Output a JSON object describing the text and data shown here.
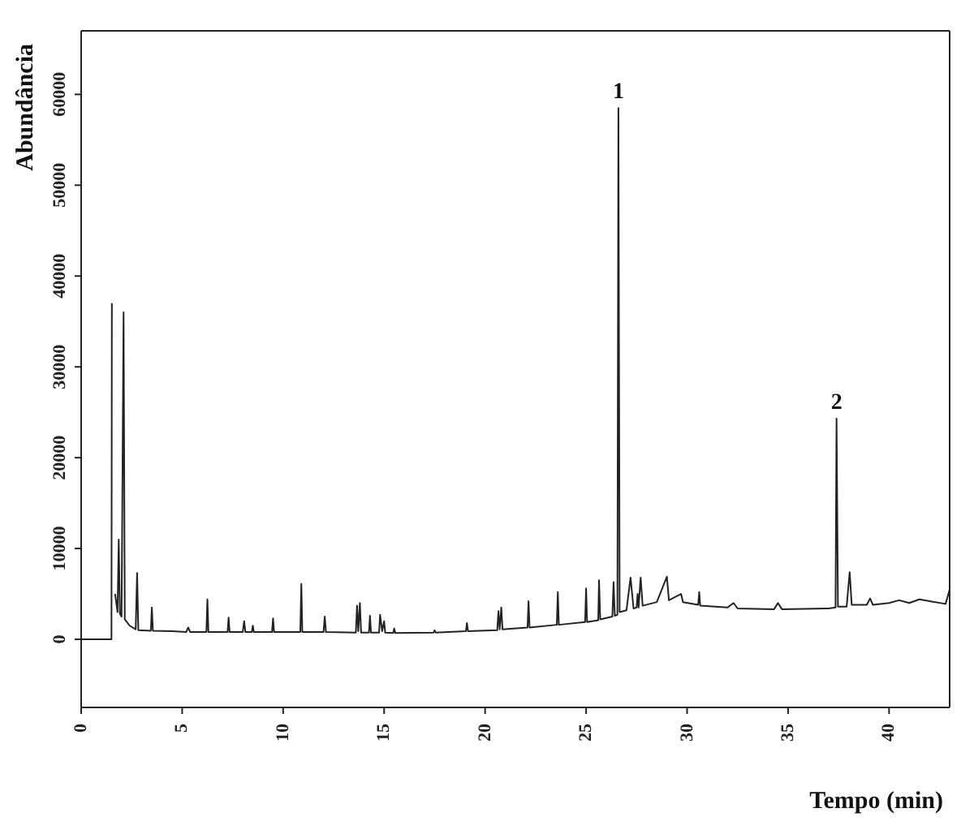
{
  "chart_data": {
    "type": "line",
    "xlabel": "Tempo (min)",
    "ylabel": "Abundância",
    "xlim": [
      0,
      43
    ],
    "xticks": [
      0,
      5,
      10,
      15,
      20,
      25,
      30,
      35,
      40
    ],
    "ylim": [
      -7500,
      67000
    ],
    "yticks": [
      0,
      10000,
      20000,
      30000,
      40000,
      50000,
      60000
    ],
    "marker": "none",
    "line_style": "solid",
    "annotations": [
      {
        "text": "1",
        "x": 26.6,
        "y": 58500
      },
      {
        "text": "2",
        "x": 37.4,
        "y": 24300
      }
    ],
    "series": [
      {
        "color": "#222222",
        "x": [
          0,
          1.5,
          1.52,
          1.55,
          1.62,
          1.68,
          1.8,
          1.86,
          1.92,
          2.0,
          2.1,
          2.16,
          2.4,
          2.7,
          2.77,
          2.83,
          3.45,
          3.5,
          3.55,
          4.5,
          5.2,
          5.3,
          5.4,
          6.2,
          6.25,
          6.3,
          7.25,
          7.3,
          7.35,
          8.0,
          8.07,
          8.13,
          8.45,
          8.5,
          8.55,
          9.45,
          9.5,
          9.55,
          10.85,
          10.9,
          10.95,
          12.0,
          12.06,
          12.12,
          13.6,
          13.66,
          13.72,
          13.8,
          13.86,
          14.25,
          14.3,
          14.35,
          14.75,
          14.8,
          14.9,
          15.0,
          15.05,
          15.45,
          15.5,
          15.55,
          17.45,
          17.5,
          17.55,
          19.05,
          19.1,
          19.15,
          20.6,
          20.66,
          20.72,
          20.8,
          20.86,
          22.1,
          22.15,
          22.2,
          23.55,
          23.6,
          23.65,
          24.95,
          25.0,
          25.05,
          25.6,
          25.64,
          25.7,
          26.3,
          26.36,
          26.42,
          26.55,
          26.6,
          26.66,
          27.0,
          27.2,
          27.35,
          27.5,
          27.55,
          27.6,
          27.7,
          27.8,
          28.5,
          29.0,
          29.1,
          29.7,
          29.8,
          30.55,
          30.6,
          30.65,
          32.0,
          32.3,
          32.5,
          34.3,
          34.5,
          34.7,
          37.0,
          37.35,
          37.4,
          37.47,
          37.9,
          38.05,
          38.15,
          38.9,
          39.06,
          39.2,
          40.0,
          40.5,
          41.0,
          41.5,
          42.0,
          42.8,
          43.0
        ],
        "values": [
          0,
          0,
          37000,
          null,
          null,
          5000,
          3000,
          11000,
          2800,
          2500,
          36000,
          2200,
          1500,
          1100,
          7300,
          1000,
          950,
          3500,
          950,
          900,
          800,
          1300,
          800,
          800,
          4400,
          800,
          800,
          2400,
          800,
          800,
          2000,
          800,
          800,
          1500,
          800,
          800,
          2300,
          800,
          800,
          6100,
          800,
          800,
          2500,
          800,
          750,
          3700,
          900,
          4000,
          750,
          750,
          2600,
          750,
          750,
          2700,
          900,
          2000,
          750,
          700,
          1200,
          700,
          750,
          1000,
          750,
          900,
          1800,
          900,
          1000,
          3100,
          1100,
          3500,
          1100,
          1300,
          4200,
          1300,
          1600,
          5200,
          1600,
          1900,
          5600,
          1900,
          2100,
          6500,
          2200,
          2500,
          6300,
          2600,
          2700,
          58500,
          3000,
          3200,
          6800,
          3400,
          3500,
          5000,
          3500,
          6800,
          3700,
          4100,
          6900,
          4300,
          5000,
          4100,
          3800,
          5200,
          3700,
          3500,
          4000,
          3400,
          3300,
          4000,
          3300,
          3400,
          3500,
          24300,
          3600,
          3600,
          7400,
          3800,
          3800,
          4500,
          3800,
          4000,
          4300,
          4000,
          4400,
          4200,
          3900,
          5500
        ]
      }
    ]
  }
}
